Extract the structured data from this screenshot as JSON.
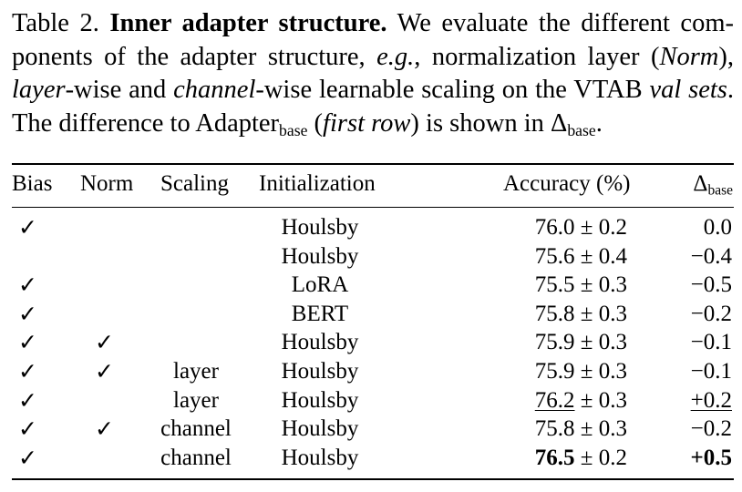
{
  "caption": {
    "label": "Table 2.",
    "title": "Inner adapter structure.",
    "p1": " We evaluate the different com-",
    "p2": "ponents of the adapter structure, ",
    "eg": "e.g.",
    "p3": ", normalization layer (",
    "norm": "Norm",
    "p4": "),",
    "layer": "layer",
    "p5": "-wise and ",
    "channel": "channel",
    "p6": "-wise learnable scaling on the VTAB ",
    "val": "val",
    "sets": "sets",
    "p7": ". The difference to Adapter",
    "base1": "base",
    "p8": " (",
    "first_row": "first row",
    "p9": ") is shown in Δ",
    "base2": "base",
    "p10": "."
  },
  "table": {
    "headers": {
      "bias": "Bias",
      "norm": "Norm",
      "scaling": "Scaling",
      "init": "Initialization",
      "accuracy": "Accuracy (%)",
      "delta": "Δ",
      "delta_sub": "base"
    },
    "check_symbol": "✓",
    "rows": [
      {
        "bias": "✓",
        "norm": "",
        "scaling": "",
        "init": "Houlsby",
        "acc": "76.0",
        "pm": "0.2",
        "delta": "0.0"
      },
      {
        "bias": "",
        "norm": "",
        "scaling": "",
        "init": "Houlsby",
        "acc": "75.6",
        "pm": "0.4",
        "delta": "−0.4"
      },
      {
        "bias": "✓",
        "norm": "",
        "scaling": "",
        "init": "LoRA",
        "acc": "75.5",
        "pm": "0.3",
        "delta": "−0.5"
      },
      {
        "bias": "✓",
        "norm": "",
        "scaling": "",
        "init": "BERT",
        "acc": "75.8",
        "pm": "0.3",
        "delta": "−0.2"
      },
      {
        "bias": "✓",
        "norm": "✓",
        "scaling": "",
        "init": "Houlsby",
        "acc": "75.9",
        "pm": "0.3",
        "delta": "−0.1"
      },
      {
        "bias": "✓",
        "norm": "✓",
        "scaling": "layer",
        "init": "Houlsby",
        "acc": "75.9",
        "pm": "0.3",
        "delta": "−0.1"
      },
      {
        "bias": "✓",
        "norm": "",
        "scaling": "layer",
        "init": "Houlsby",
        "acc": "76.2",
        "pm": "0.3",
        "delta": "+0.2",
        "style": "underline"
      },
      {
        "bias": "✓",
        "norm": "✓",
        "scaling": "channel",
        "init": "Houlsby",
        "acc": "75.8",
        "pm": "0.3",
        "delta": "−0.2"
      },
      {
        "bias": "✓",
        "norm": "",
        "scaling": "channel",
        "init": "Houlsby",
        "acc": "76.5",
        "pm": "0.2",
        "delta": "+0.5",
        "style": "bold"
      }
    ]
  }
}
